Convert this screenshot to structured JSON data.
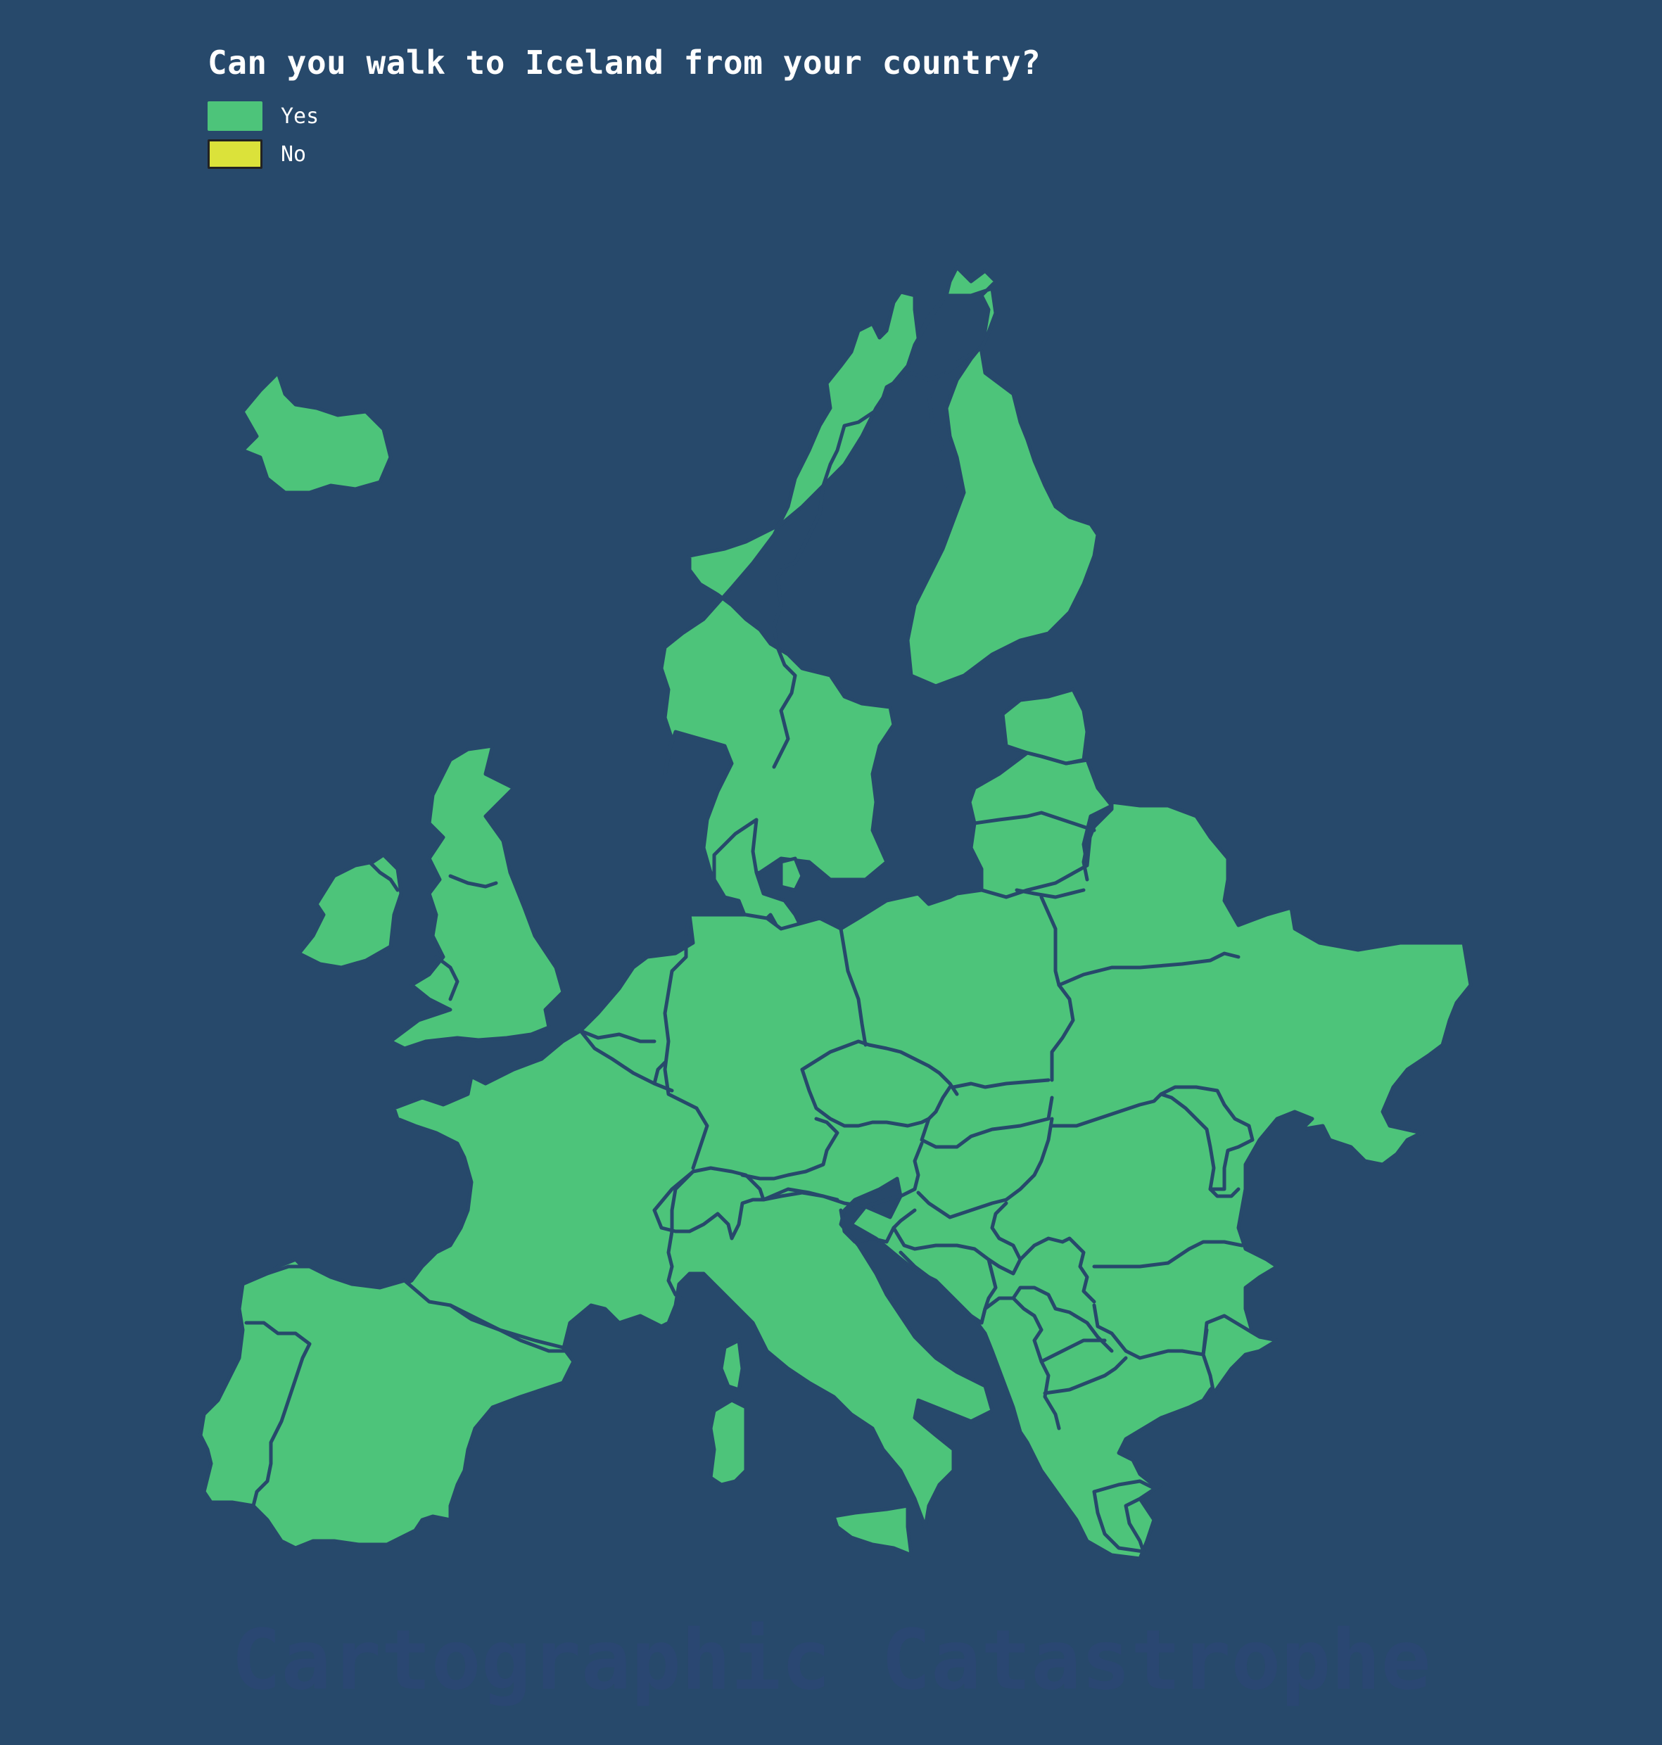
{
  "title": "Can you walk to Iceland from your country?",
  "legend": [
    {
      "label": "Yes",
      "color": "#4dc47a"
    },
    {
      "label": "No",
      "color": "#dbe23a"
    }
  ],
  "watermark": "Cartographic Catastrophe",
  "colors": {
    "background": "#27496b",
    "land_yes": "#4dc47a",
    "border": "#27496b"
  }
}
